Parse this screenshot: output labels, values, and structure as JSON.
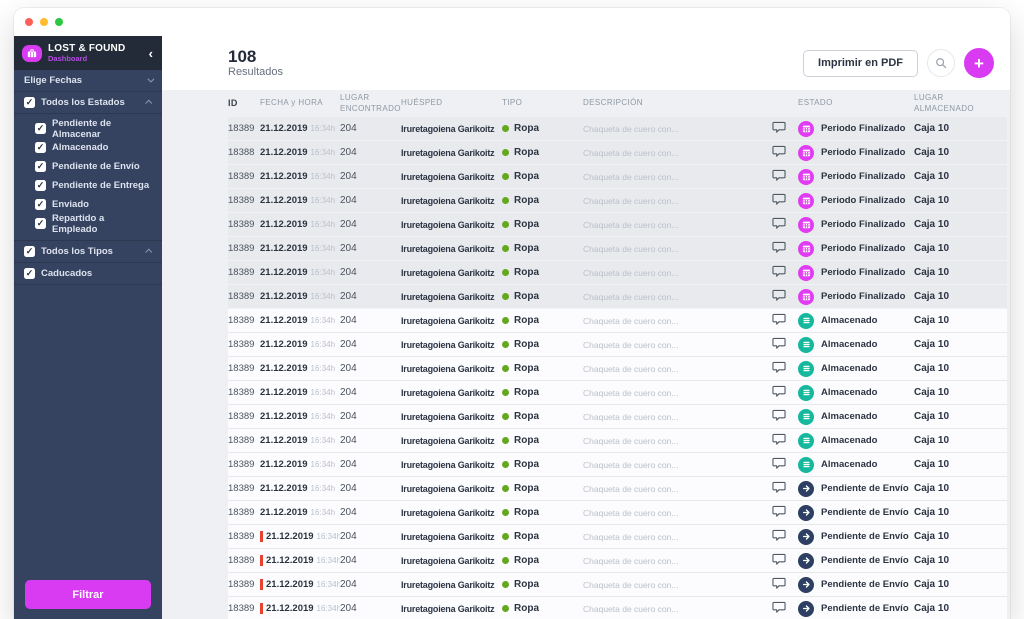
{
  "window": {
    "traffic_lights": [
      "#ff5f57",
      "#febc2e",
      "#2bc840"
    ]
  },
  "sidebar": {
    "brand": {
      "title": "LOST & FOUND",
      "subtitle": "Dashboard",
      "collapse_icon": "‹"
    },
    "date_filter": {
      "label": "Elige Fechas"
    },
    "estados": {
      "label": "Todos los Estados",
      "children": [
        "Pendiente de Almacenar",
        "Almacenado",
        "Pendiente de Envío",
        "Pendiente de Entrega",
        "Enviado",
        "Repartido a Empleado"
      ]
    },
    "tipos": {
      "label": "Todos los Tipos"
    },
    "caducados": {
      "label": "Caducados"
    },
    "filter_button": "Filtrar"
  },
  "header": {
    "count": "108",
    "count_label": "Resultados",
    "print_button": "Imprimir en PDF",
    "plus_label": "+"
  },
  "table": {
    "columns": [
      "ID",
      "FECHA y HORA",
      "LUGAR ENCONTRADO",
      "HUÉSPED",
      "TIPO",
      "DESCRIPCIÓN",
      "",
      "ESTADO",
      "LUGAR ALMACENADO"
    ],
    "rows": [
      {
        "id": "18389",
        "date": "21.12.2019",
        "time": "16:34h",
        "place": "204",
        "guest": "Iruretagoiena Garikoitz",
        "type": "Ropa",
        "desc": "Chaqueta de cuero con...",
        "status": "Periodo Finalizado",
        "status_kind": "finalizado",
        "status_icon": "calendar-icon",
        "storage": "Caja 10",
        "flag": false,
        "shaded": true
      },
      {
        "id": "18388",
        "date": "21.12.2019",
        "time": "16:34h",
        "place": "204",
        "guest": "Iruretagoiena Garikoitz",
        "type": "Ropa",
        "desc": "Chaqueta de cuero con...",
        "status": "Periodo Finalizado",
        "status_kind": "finalizado",
        "status_icon": "calendar-icon",
        "storage": "Caja 10",
        "flag": false,
        "shaded": true
      },
      {
        "id": "18389",
        "date": "21.12.2019",
        "time": "16:34h",
        "place": "204",
        "guest": "Iruretagoiena Garikoitz",
        "type": "Ropa",
        "desc": "Chaqueta de cuero con...",
        "status": "Periodo Finalizado",
        "status_kind": "finalizado",
        "status_icon": "calendar-icon",
        "storage": "Caja 10",
        "flag": false,
        "shaded": true
      },
      {
        "id": "18389",
        "date": "21.12.2019",
        "time": "16:34h",
        "place": "204",
        "guest": "Iruretagoiena Garikoitz",
        "type": "Ropa",
        "desc": "Chaqueta de cuero con...",
        "status": "Periodo Finalizado",
        "status_kind": "finalizado",
        "status_icon": "calendar-icon",
        "storage": "Caja 10",
        "flag": false,
        "shaded": true
      },
      {
        "id": "18389",
        "date": "21.12.2019",
        "time": "16:34h",
        "place": "204",
        "guest": "Iruretagoiena Garikoitz",
        "type": "Ropa",
        "desc": "Chaqueta de cuero con...",
        "status": "Periodo Finalizado",
        "status_kind": "finalizado",
        "status_icon": "calendar-icon",
        "storage": "Caja 10",
        "flag": false,
        "shaded": true
      },
      {
        "id": "18389",
        "date": "21.12.2019",
        "time": "16:34h",
        "place": "204",
        "guest": "Iruretagoiena Garikoitz",
        "type": "Ropa",
        "desc": "Chaqueta de cuero con...",
        "status": "Periodo Finalizado",
        "status_kind": "finalizado",
        "status_icon": "calendar-icon",
        "storage": "Caja 10",
        "flag": false,
        "shaded": true
      },
      {
        "id": "18389",
        "date": "21.12.2019",
        "time": "16:34h",
        "place": "204",
        "guest": "Iruretagoiena Garikoitz",
        "type": "Ropa",
        "desc": "Chaqueta de cuero con...",
        "status": "Periodo Finalizado",
        "status_kind": "finalizado",
        "status_icon": "calendar-icon",
        "storage": "Caja 10",
        "flag": false,
        "shaded": true
      },
      {
        "id": "18389",
        "date": "21.12.2019",
        "time": "16:34h",
        "place": "204",
        "guest": "Iruretagoiena Garikoitz",
        "type": "Ropa",
        "desc": "Chaqueta de cuero con...",
        "status": "Periodo Finalizado",
        "status_kind": "finalizado",
        "status_icon": "calendar-icon",
        "storage": "Caja 10",
        "flag": false,
        "shaded": true
      },
      {
        "id": "18389",
        "date": "21.12.2019",
        "time": "16:34h",
        "place": "204",
        "guest": "Iruretagoiena Garikoitz",
        "type": "Ropa",
        "desc": "Chaqueta de cuero con...",
        "status": "Almacenado",
        "status_kind": "almacenado",
        "status_icon": "list-icon",
        "storage": "Caja 10",
        "flag": false,
        "shaded": false
      },
      {
        "id": "18389",
        "date": "21.12.2019",
        "time": "16:34h",
        "place": "204",
        "guest": "Iruretagoiena Garikoitz",
        "type": "Ropa",
        "desc": "Chaqueta de cuero con...",
        "status": "Almacenado",
        "status_kind": "almacenado",
        "status_icon": "list-icon",
        "storage": "Caja 10",
        "flag": false,
        "shaded": false
      },
      {
        "id": "18389",
        "date": "21.12.2019",
        "time": "16:34h",
        "place": "204",
        "guest": "Iruretagoiena Garikoitz",
        "type": "Ropa",
        "desc": "Chaqueta de cuero con...",
        "status": "Almacenado",
        "status_kind": "almacenado",
        "status_icon": "list-icon",
        "storage": "Caja 10",
        "flag": false,
        "shaded": false
      },
      {
        "id": "18389",
        "date": "21.12.2019",
        "time": "16:34h",
        "place": "204",
        "guest": "Iruretagoiena Garikoitz",
        "type": "Ropa",
        "desc": "Chaqueta de cuero con...",
        "status": "Almacenado",
        "status_kind": "almacenado",
        "status_icon": "list-icon",
        "storage": "Caja 10",
        "flag": false,
        "shaded": false
      },
      {
        "id": "18389",
        "date": "21.12.2019",
        "time": "16:34h",
        "place": "204",
        "guest": "Iruretagoiena Garikoitz",
        "type": "Ropa",
        "desc": "Chaqueta de cuero con...",
        "status": "Almacenado",
        "status_kind": "almacenado",
        "status_icon": "list-icon",
        "storage": "Caja 10",
        "flag": false,
        "shaded": false
      },
      {
        "id": "18389",
        "date": "21.12.2019",
        "time": "16:34h",
        "place": "204",
        "guest": "Iruretagoiena Garikoitz",
        "type": "Ropa",
        "desc": "Chaqueta de cuero con...",
        "status": "Almacenado",
        "status_kind": "almacenado",
        "status_icon": "list-icon",
        "storage": "Caja 10",
        "flag": false,
        "shaded": false
      },
      {
        "id": "18389",
        "date": "21.12.2019",
        "time": "16:34h",
        "place": "204",
        "guest": "Iruretagoiena Garikoitz",
        "type": "Ropa",
        "desc": "Chaqueta de cuero con...",
        "status": "Almacenado",
        "status_kind": "almacenado",
        "status_icon": "list-icon",
        "storage": "Caja 10",
        "flag": false,
        "shaded": false
      },
      {
        "id": "18389",
        "date": "21.12.2019",
        "time": "16:34h",
        "place": "204",
        "guest": "Iruretagoiena Garikoitz",
        "type": "Ropa",
        "desc": "Chaqueta de cuero con...",
        "status": "Pendiente de Envío",
        "status_kind": "envio",
        "status_icon": "arrow-right-icon",
        "storage": "Caja 10",
        "flag": false,
        "shaded": false
      },
      {
        "id": "18389",
        "date": "21.12.2019",
        "time": "16:34h",
        "place": "204",
        "guest": "Iruretagoiena Garikoitz",
        "type": "Ropa",
        "desc": "Chaqueta de cuero con...",
        "status": "Pendiente de Envío",
        "status_kind": "envio",
        "status_icon": "arrow-right-icon",
        "storage": "Caja 10",
        "flag": false,
        "shaded": false
      },
      {
        "id": "18389",
        "date": "21.12.2019",
        "time": "16:34h",
        "place": "204",
        "guest": "Iruretagoiena Garikoitz",
        "type": "Ropa",
        "desc": "Chaqueta de cuero con...",
        "status": "Pendiente de Envío",
        "status_kind": "envio",
        "status_icon": "arrow-right-icon",
        "storage": "Caja 10",
        "flag": true,
        "shaded": false
      },
      {
        "id": "18389",
        "date": "21.12.2019",
        "time": "16:34h",
        "place": "204",
        "guest": "Iruretagoiena Garikoitz",
        "type": "Ropa",
        "desc": "Chaqueta de cuero con...",
        "status": "Pendiente de Envío",
        "status_kind": "envio",
        "status_icon": "arrow-right-icon",
        "storage": "Caja 10",
        "flag": true,
        "shaded": false
      },
      {
        "id": "18389",
        "date": "21.12.2019",
        "time": "16:34h",
        "place": "204",
        "guest": "Iruretagoiena Garikoitz",
        "type": "Ropa",
        "desc": "Chaqueta de cuero con...",
        "status": "Pendiente de Envío",
        "status_kind": "envio",
        "status_icon": "arrow-right-icon",
        "storage": "Caja 10",
        "flag": true,
        "shaded": false
      },
      {
        "id": "18389",
        "date": "21.12.2019",
        "time": "16:34h",
        "place": "204",
        "guest": "Iruretagoiena Garikoitz",
        "type": "Ropa",
        "desc": "Chaqueta de cuero con...",
        "status": "Pendiente de Envío",
        "status_kind": "envio",
        "status_icon": "arrow-right-icon",
        "storage": "Caja 10",
        "flag": true,
        "shaded": false
      }
    ]
  },
  "colors": {
    "accent": "#d93bf2",
    "status_finalizado": "#e03df2",
    "status_almacenado": "#16b99d",
    "status_envio": "#2d3f63",
    "type_dot": "#63a81e",
    "flag_red": "#e8432e",
    "sidebar_bg": "#354260",
    "sidebar_header_bg": "#232b39"
  }
}
